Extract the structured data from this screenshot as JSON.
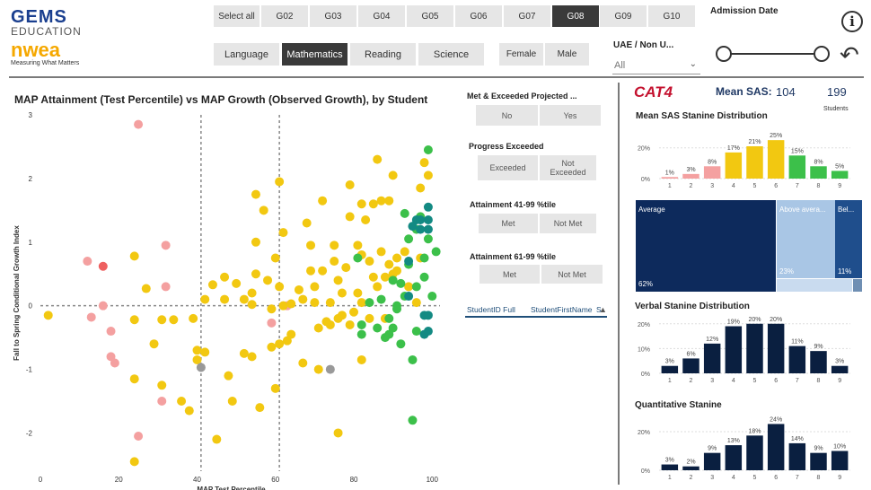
{
  "brand": {
    "gems": "GEMS",
    "education": "EDUCATION",
    "nwea": "nwea",
    "tagline": "Measuring What Matters"
  },
  "grades": {
    "select_all": "Select all",
    "items": [
      "G02",
      "G03",
      "G04",
      "G05",
      "G06",
      "G07",
      "G08",
      "G09",
      "G10"
    ],
    "selected": "G08"
  },
  "subjects": {
    "items": [
      "Language",
      "Mathematics",
      "Reading",
      "Science"
    ],
    "selected": "Mathematics"
  },
  "gender": {
    "items": [
      "Female",
      "Male"
    ]
  },
  "uae_filter": {
    "label": "UAE / Non U...",
    "value": "All"
  },
  "admission": {
    "label": "Admission Date"
  },
  "scatter": {
    "title": "MAP Attainment (Test Percentile) vs MAP Growth (Observed Growth), by Student",
    "xlabel": "MAP Test Percentile",
    "ylabel": "Fall to Spring Conditional Growth Index"
  },
  "filters": {
    "met_exceeded": {
      "title": "Met & Exceeded Projected ...",
      "options": [
        "No",
        "Yes"
      ]
    },
    "progress": {
      "title": "Progress Exceeded",
      "options": [
        "Exceeded",
        "Not Exceeded"
      ]
    },
    "att41": {
      "title": "Attainment 41-99 %tile",
      "options": [
        "Met",
        "Not Met"
      ]
    },
    "att61": {
      "title": "Attainment 61-99 %tile",
      "options": [
        "Met",
        "Not Met"
      ]
    }
  },
  "table": {
    "columns": [
      "StudentID Full",
      "StudentFirstName",
      "S"
    ]
  },
  "cat4": {
    "logo": "CAT4",
    "mean_sas_label": "Mean SAS:",
    "mean_sas": "104",
    "students": "199",
    "students_label": "Students"
  },
  "treemap": {
    "items": [
      {
        "label": "Average",
        "pct": "62%",
        "value": 62,
        "color": "#0d2a5c"
      },
      {
        "label": "Above avera...",
        "pct": "23%",
        "value": 23,
        "color": "#8fb3d9"
      },
      {
        "label": "Bel...",
        "pct": "11%",
        "value": 11,
        "color": "#1f4e8c"
      }
    ]
  },
  "chart_data": [
    {
      "id": "scatter",
      "type": "scatter",
      "title": "MAP Attainment (Test Percentile) vs MAP Growth (Observed Growth), by Student",
      "xlabel": "MAP Test Percentile",
      "ylabel": "Fall to Spring Conditional Growth Index",
      "xlim": [
        0,
        102
      ],
      "ylim": [
        -2.6,
        3
      ],
      "xticks": [
        0,
        20,
        40,
        60,
        80,
        100
      ],
      "yticks": [
        -2,
        -1,
        0,
        1,
        2,
        3
      ],
      "ref_x": [
        41,
        61
      ],
      "ref_y": 0,
      "points": [
        [
          25,
          2.85,
          "p"
        ],
        [
          12,
          0.7,
          "p"
        ],
        [
          16,
          0.62,
          "r"
        ],
        [
          32,
          0.95,
          "p"
        ],
        [
          32,
          0.3,
          "p"
        ],
        [
          13,
          -0.18,
          "p"
        ],
        [
          16,
          0,
          "p"
        ],
        [
          18,
          -0.4,
          "p"
        ],
        [
          18,
          -0.8,
          "p"
        ],
        [
          19,
          -0.9,
          "p"
        ],
        [
          25,
          -2.05,
          "p"
        ],
        [
          31,
          -1.5,
          "p"
        ],
        [
          59,
          -0.27,
          "p"
        ],
        [
          63,
          0,
          "p"
        ],
        [
          2,
          -0.15,
          "y"
        ],
        [
          24,
          0.78,
          "y"
        ],
        [
          27,
          0.27,
          "y"
        ],
        [
          24,
          -0.22,
          "y"
        ],
        [
          24,
          -1.15,
          "y"
        ],
        [
          24,
          -2.45,
          "y"
        ],
        [
          29,
          -0.6,
          "y"
        ],
        [
          31,
          -0.22,
          "y"
        ],
        [
          31,
          -1.25,
          "y"
        ],
        [
          34,
          -0.22,
          "y"
        ],
        [
          36,
          -1.5,
          "y"
        ],
        [
          38,
          -1.65,
          "y"
        ],
        [
          40,
          -0.85,
          "y"
        ],
        [
          40,
          -0.7,
          "y"
        ],
        [
          39,
          -0.2,
          "y"
        ],
        [
          42,
          0.1,
          "y"
        ],
        [
          44,
          0.33,
          "y"
        ],
        [
          42,
          -0.73,
          "y"
        ],
        [
          45,
          -2.1,
          "y"
        ],
        [
          47,
          0.45,
          "y"
        ],
        [
          47,
          0.1,
          "y"
        ],
        [
          48,
          -1.1,
          "y"
        ],
        [
          49,
          -1.5,
          "y"
        ],
        [
          50,
          0.35,
          "y"
        ],
        [
          52,
          0.1,
          "y"
        ],
        [
          52,
          -0.75,
          "y"
        ],
        [
          54,
          0.2,
          "y"
        ],
        [
          54,
          0.02,
          "y"
        ],
        [
          54,
          -0.8,
          "y"
        ],
        [
          55,
          1.75,
          "y"
        ],
        [
          55,
          1.0,
          "y"
        ],
        [
          55,
          0.5,
          "y"
        ],
        [
          56,
          -1.6,
          "y"
        ],
        [
          57,
          1.5,
          "y"
        ],
        [
          58,
          0.4,
          "y"
        ],
        [
          59,
          -0.05,
          "y"
        ],
        [
          59,
          -0.65,
          "y"
        ],
        [
          60,
          -1.3,
          "y"
        ],
        [
          60,
          0.75,
          "y"
        ],
        [
          61,
          1.95,
          "y"
        ],
        [
          61,
          0.3,
          "y"
        ],
        [
          61,
          -0.6,
          "y"
        ],
        [
          62,
          1.15,
          "y"
        ],
        [
          62,
          0.0,
          "y"
        ],
        [
          63,
          -0.55,
          "y"
        ],
        [
          64,
          0.03,
          "y"
        ],
        [
          64,
          -0.45,
          "y"
        ],
        [
          66,
          0.25,
          "y"
        ],
        [
          67,
          0.1,
          "y"
        ],
        [
          67,
          -0.9,
          "y"
        ],
        [
          68,
          1.3,
          "y"
        ],
        [
          69,
          0.95,
          "y"
        ],
        [
          69,
          0.55,
          "y"
        ],
        [
          70,
          0.3,
          "y"
        ],
        [
          70,
          0.05,
          "y"
        ],
        [
          71,
          -0.35,
          "y"
        ],
        [
          71,
          -1.0,
          "y"
        ],
        [
          72,
          1.65,
          "y"
        ],
        [
          72,
          0.55,
          "y"
        ],
        [
          73,
          -0.25,
          "y"
        ],
        [
          74,
          0.05,
          "y"
        ],
        [
          74,
          -0.3,
          "y"
        ],
        [
          75,
          0.95,
          "y"
        ],
        [
          75,
          0.7,
          "y"
        ],
        [
          76,
          0.4,
          "y"
        ],
        [
          76,
          -0.2,
          "y"
        ],
        [
          76,
          -2.0,
          "y"
        ],
        [
          77,
          0.2,
          "y"
        ],
        [
          77,
          -0.15,
          "y"
        ],
        [
          78,
          0.6,
          "y"
        ],
        [
          79,
          1.9,
          "y"
        ],
        [
          79,
          1.4,
          "y"
        ],
        [
          79,
          -0.3,
          "y"
        ],
        [
          80,
          -0.1,
          "y"
        ],
        [
          81,
          0.95,
          "y"
        ],
        [
          81,
          0.2,
          "y"
        ],
        [
          82,
          1.6,
          "y"
        ],
        [
          82,
          0.8,
          "y"
        ],
        [
          82,
          0.05,
          "y"
        ],
        [
          82,
          -0.85,
          "y"
        ],
        [
          83,
          1.35,
          "y"
        ],
        [
          84,
          0.7,
          "y"
        ],
        [
          84,
          -0.2,
          "y"
        ],
        [
          85,
          1.6,
          "y"
        ],
        [
          85,
          0.45,
          "y"
        ],
        [
          86,
          2.3,
          "y"
        ],
        [
          86,
          0.3,
          "y"
        ],
        [
          87,
          0.85,
          "y"
        ],
        [
          87,
          1.65,
          "y"
        ],
        [
          88,
          0.45,
          "y"
        ],
        [
          88,
          -0.2,
          "y"
        ],
        [
          89,
          0.65,
          "y"
        ],
        [
          89,
          1.65,
          "y"
        ],
        [
          90,
          2.05,
          "y"
        ],
        [
          90,
          0.5,
          "y"
        ],
        [
          91,
          0.75,
          "y"
        ],
        [
          91,
          0.55,
          "y"
        ],
        [
          93,
          0.85,
          "y"
        ],
        [
          94,
          0.3,
          "y"
        ],
        [
          96,
          0.05,
          "y"
        ],
        [
          97,
          0.75,
          "y"
        ],
        [
          97,
          1.85,
          "y"
        ],
        [
          98,
          2.25,
          "y"
        ],
        [
          99,
          2.05,
          "y"
        ],
        [
          41,
          -0.97,
          "gray"
        ],
        [
          74,
          -1.0,
          "gray"
        ],
        [
          81,
          0.75,
          "g"
        ],
        [
          82,
          -0.3,
          "g"
        ],
        [
          82,
          -0.45,
          "g"
        ],
        [
          84,
          0.05,
          "g"
        ],
        [
          86,
          -0.35,
          "g"
        ],
        [
          87,
          0.1,
          "g"
        ],
        [
          88,
          -0.5,
          "g"
        ],
        [
          89,
          -0.2,
          "g"
        ],
        [
          89,
          -0.45,
          "g"
        ],
        [
          90,
          0.4,
          "g"
        ],
        [
          90,
          -0.35,
          "g"
        ],
        [
          91,
          0.0,
          "g"
        ],
        [
          91,
          -0.05,
          "g"
        ],
        [
          92,
          0.35,
          "g"
        ],
        [
          92,
          -0.6,
          "g"
        ],
        [
          93,
          1.45,
          "g"
        ],
        [
          93,
          0.15,
          "g"
        ],
        [
          94,
          1.05,
          "g"
        ],
        [
          94,
          0.65,
          "g"
        ],
        [
          95,
          -1.8,
          "g"
        ],
        [
          95,
          -0.85,
          "g"
        ],
        [
          96,
          1.2,
          "g"
        ],
        [
          96,
          0.3,
          "g"
        ],
        [
          96,
          -0.4,
          "g"
        ],
        [
          97,
          1.4,
          "g"
        ],
        [
          98,
          0.75,
          "g"
        ],
        [
          98,
          0.45,
          "g"
        ],
        [
          99,
          2.45,
          "g"
        ],
        [
          99,
          1.05,
          "g"
        ],
        [
          100,
          0.15,
          "g"
        ],
        [
          101,
          0.85,
          "g"
        ],
        [
          94,
          0.7,
          "t"
        ],
        [
          94,
          0.15,
          "t"
        ],
        [
          95,
          1.25,
          "t"
        ],
        [
          96,
          1.35,
          "t"
        ],
        [
          97,
          1.35,
          "t"
        ],
        [
          97,
          1.2,
          "t"
        ],
        [
          98,
          -0.15,
          "t"
        ],
        [
          98,
          -0.45,
          "t"
        ],
        [
          99,
          1.55,
          "t"
        ],
        [
          99,
          1.35,
          "t"
        ],
        [
          99,
          1.2,
          "t"
        ],
        [
          99,
          -0.15,
          "t"
        ],
        [
          99,
          -0.4,
          "t"
        ]
      ],
      "colors": {
        "p": "#f4a0a0",
        "r": "#ee6060",
        "y": "#f2c811",
        "gray": "#999999",
        "g": "#3cc04a",
        "t": "#138a83"
      }
    },
    {
      "id": "sas",
      "type": "bar",
      "title": "Mean SAS Stanine Distribution",
      "categories": [
        "1",
        "2",
        "3",
        "4",
        "5",
        "6",
        "7",
        "8",
        "9"
      ],
      "values": [
        1,
        3,
        8,
        17,
        21,
        25,
        15,
        8,
        5
      ],
      "labels": [
        "1%",
        "3%",
        "8%",
        "17%",
        "21%",
        "25%",
        "15%",
        "8%",
        "5%"
      ],
      "colors": [
        "#f4a0a0",
        "#f4a0a0",
        "#f4a0a0",
        "#f2c811",
        "#f2c811",
        "#f2c811",
        "#3cc04a",
        "#3cc04a",
        "#3cc04a"
      ],
      "yticks": [
        0,
        20
      ],
      "ytick_labels": [
        "0%",
        "20%"
      ],
      "ymax": 28
    },
    {
      "id": "verbal",
      "type": "bar",
      "title": "Verbal Stanine Distribution",
      "categories": [
        "1",
        "2",
        "3",
        "4",
        "5",
        "6",
        "7",
        "8",
        "9"
      ],
      "values": [
        3,
        6,
        12,
        19,
        20,
        20,
        11,
        9,
        3
      ],
      "labels": [
        "3%",
        "6%",
        "12%",
        "19%",
        "20%",
        "20%",
        "11%",
        "9%",
        "3%"
      ],
      "color": "#0a1f40",
      "yticks": [
        0,
        10,
        20
      ],
      "ytick_labels": [
        "0%",
        "10%",
        "20%"
      ],
      "ymax": 21
    },
    {
      "id": "quant",
      "type": "bar",
      "title": "Quantitative Stanine",
      "categories": [
        "1",
        "2",
        "3",
        "4",
        "5",
        "6",
        "7",
        "8",
        "9"
      ],
      "values": [
        3,
        2,
        9,
        13,
        18,
        24,
        14,
        9,
        10
      ],
      "labels": [
        "3%",
        "2%",
        "9%",
        "13%",
        "18%",
        "24%",
        "14%",
        "9%",
        "10%"
      ],
      "color": "#0a1f40",
      "yticks": [
        0,
        20
      ],
      "ytick_labels": [
        "0%",
        "20%"
      ],
      "ymax": 27
    }
  ]
}
